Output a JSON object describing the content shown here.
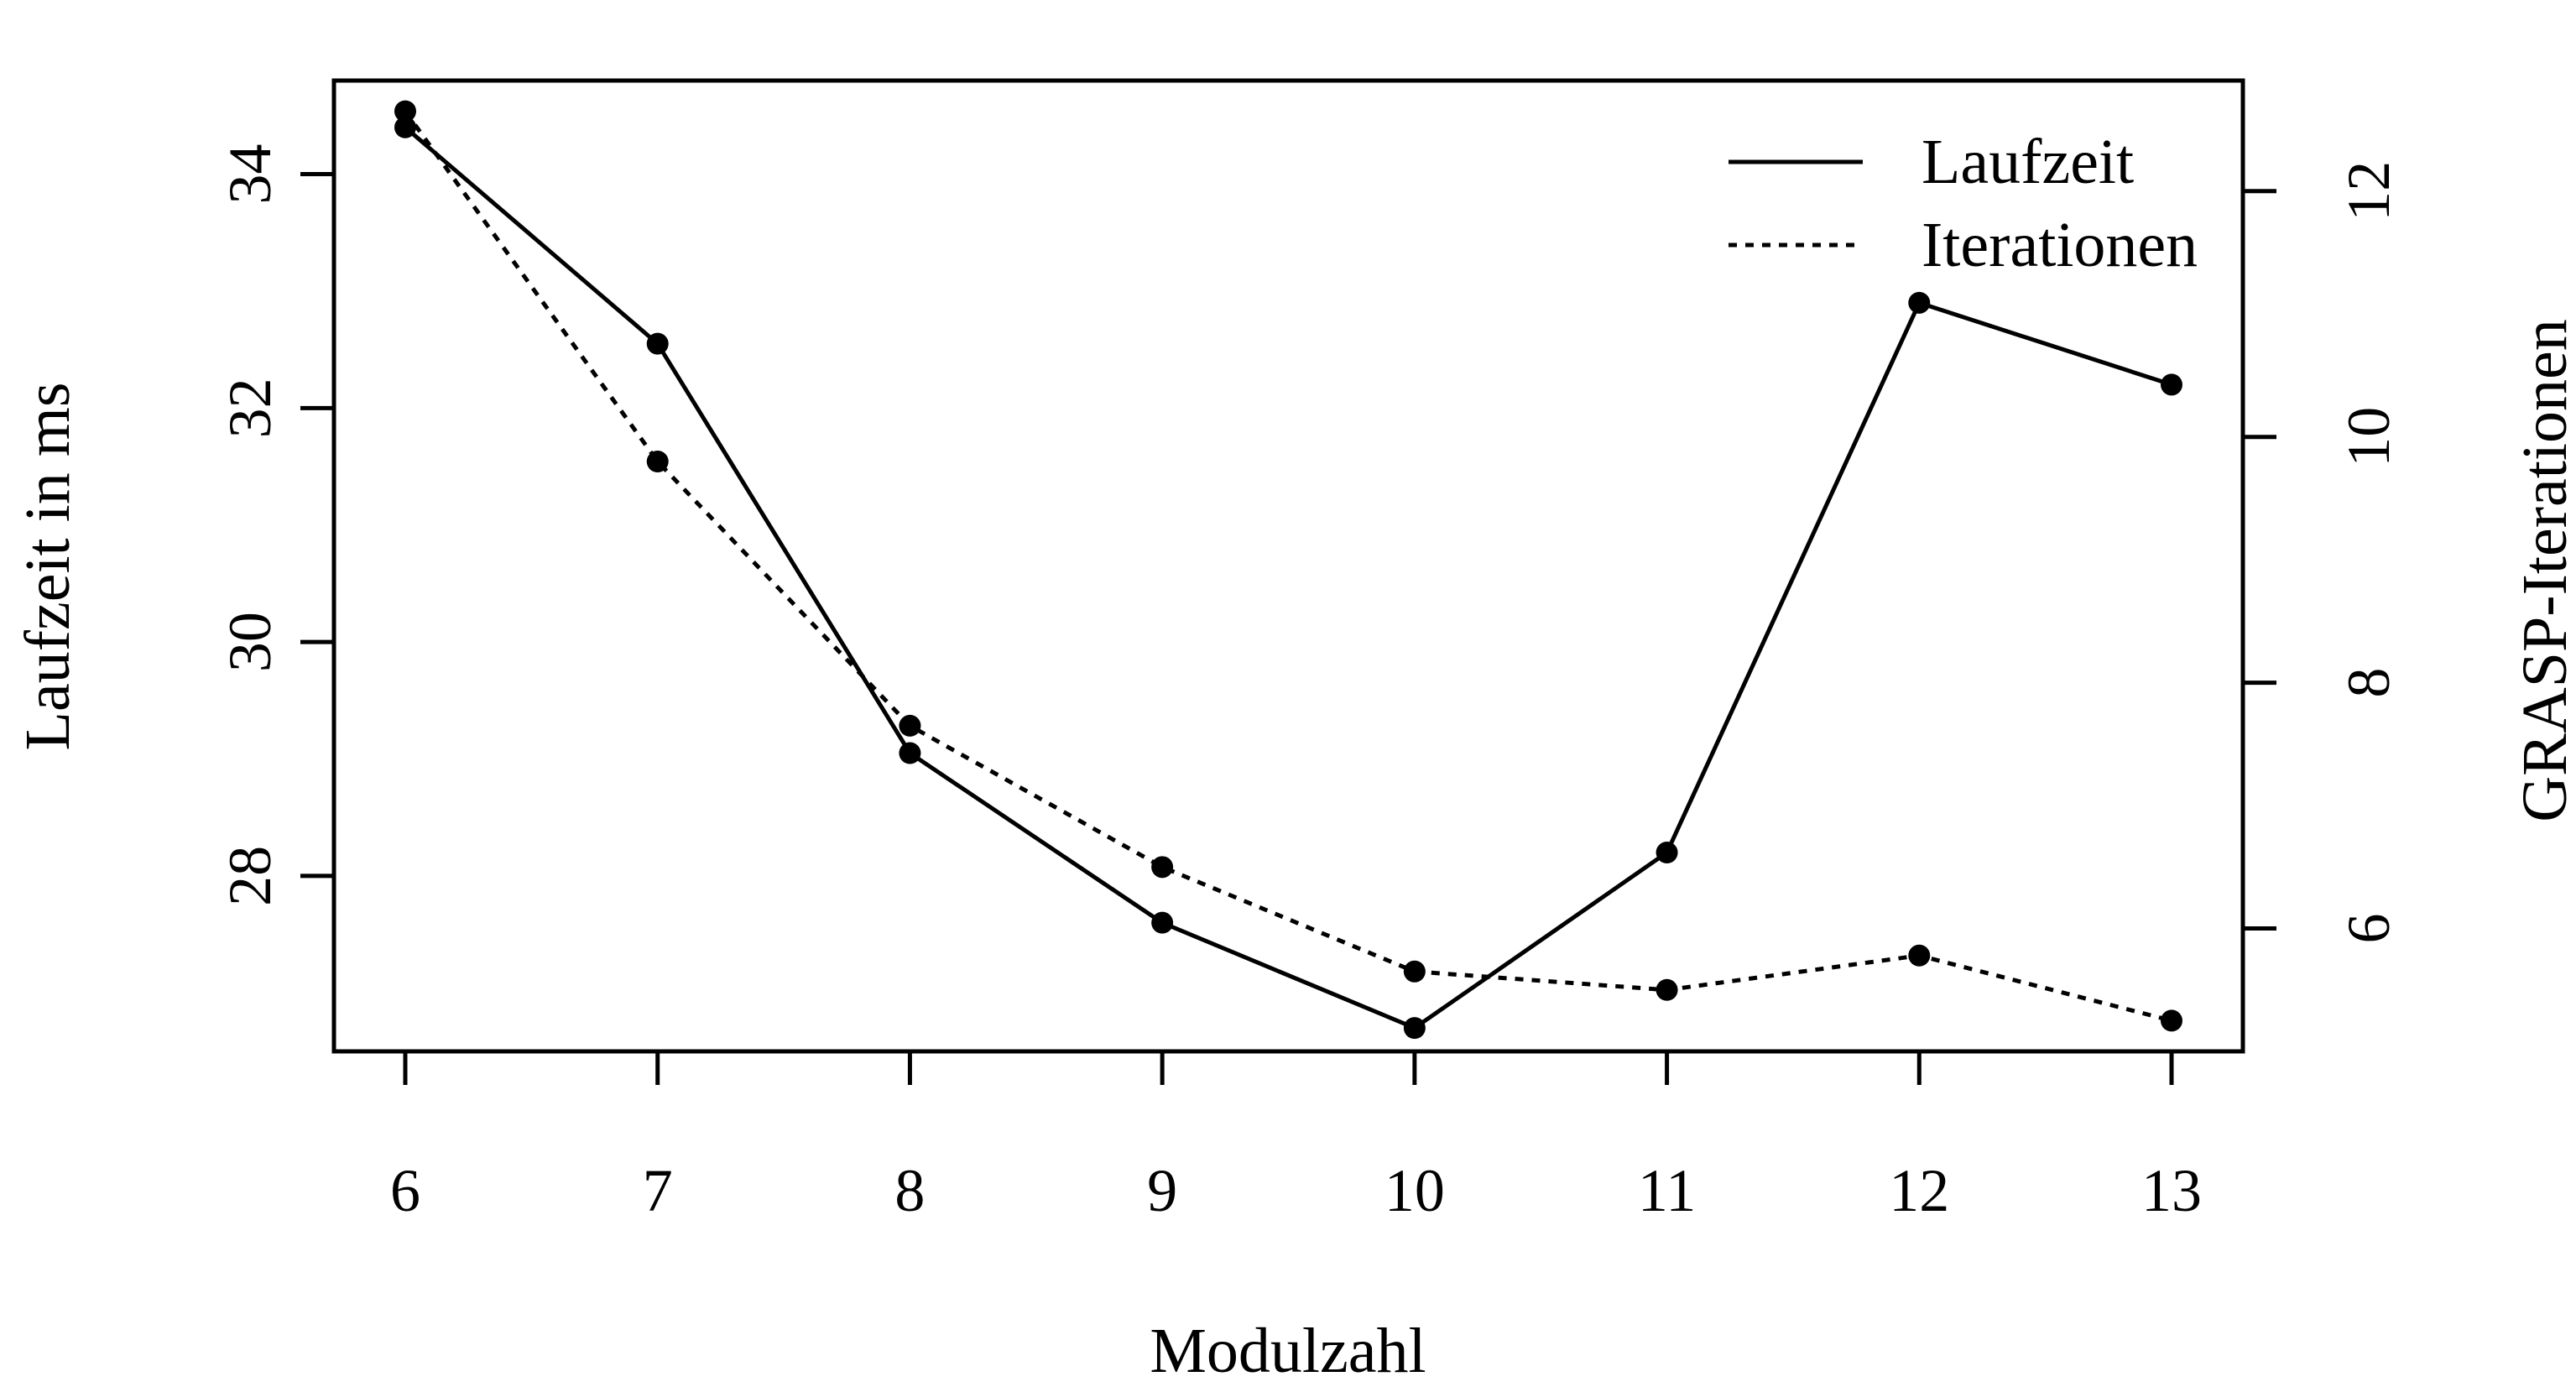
{
  "chart_data": {
    "type": "line",
    "title": "",
    "xlabel": "Modulzahl",
    "ylabel": "Laufzeit in ms",
    "y2label": "GRASP-Iterationen",
    "x": [
      6,
      7,
      8,
      9,
      10,
      11,
      12,
      13
    ],
    "x_ticks": [
      "6",
      "7",
      "8",
      "9",
      "10",
      "11",
      "12",
      "13"
    ],
    "y_ticks": [
      "28",
      "30",
      "32",
      "34"
    ],
    "y2_ticks": [
      "6",
      "8",
      "10",
      "12"
    ],
    "ylim": [
      26.5,
      34.8
    ],
    "y2lim": [
      5.0,
      12.9
    ],
    "grid": false,
    "legend_position": "top-right",
    "series": [
      {
        "name": "Laufzeit",
        "axis": "left",
        "line_style": "solid",
        "values": [
          34.4,
          32.55,
          29.05,
          27.6,
          26.7,
          28.2,
          32.9,
          32.2
        ]
      },
      {
        "name": "Iterationen",
        "axis": "right",
        "line_style": "dotted",
        "values": [
          12.65,
          9.8,
          7.65,
          6.5,
          5.65,
          5.5,
          5.78,
          5.25
        ]
      }
    ],
    "colors": {
      "line": "#000000",
      "background": "#ffffff"
    }
  }
}
